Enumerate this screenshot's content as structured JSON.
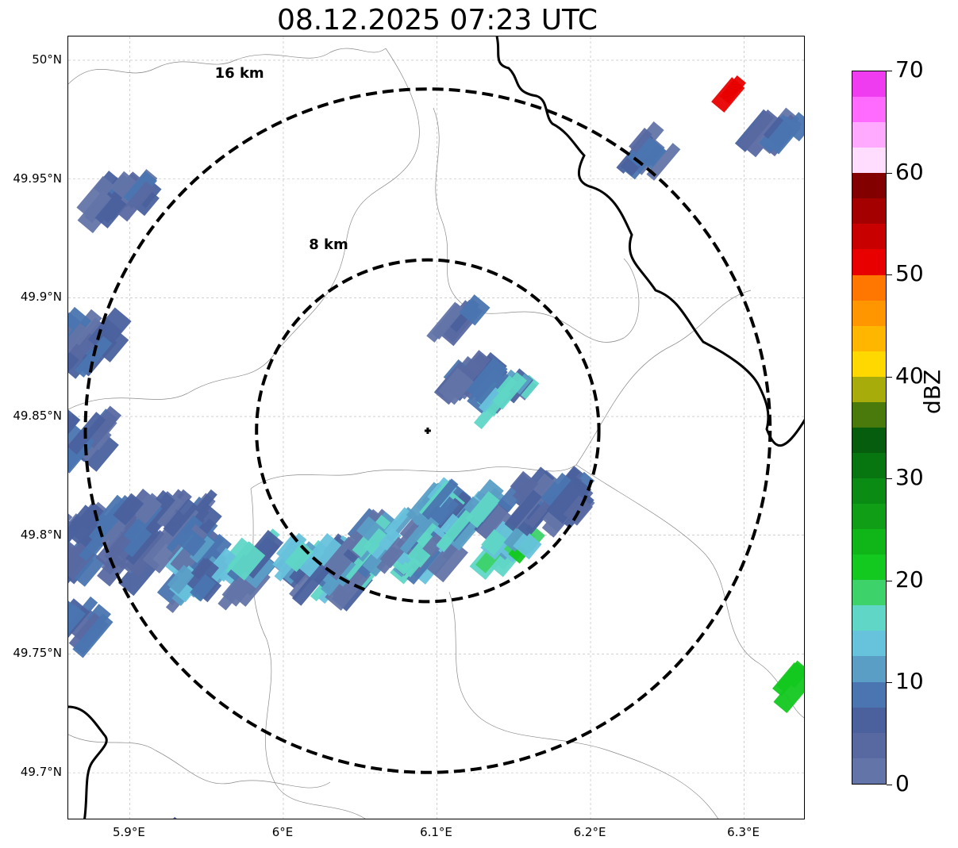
{
  "title": "08.12.2025 07:23 UTC",
  "map": {
    "lon_range": [
      5.86,
      6.34
    ],
    "lat_range": [
      49.68,
      50.01
    ],
    "lat_ticks": [
      {
        "value": 50.0,
        "label": "50°N"
      },
      {
        "value": 49.95,
        "label": "49.95°N"
      },
      {
        "value": 49.9,
        "label": "49.9°N"
      },
      {
        "value": 49.85,
        "label": "49.85°N"
      },
      {
        "value": 49.8,
        "label": "49.8°N"
      },
      {
        "value": 49.75,
        "label": "49.75°N"
      },
      {
        "value": 49.7,
        "label": "49.7°N"
      }
    ],
    "lon_ticks": [
      {
        "value": 5.9,
        "label": "5.9°E"
      },
      {
        "value": 6.0,
        "label": "6°E"
      },
      {
        "value": 6.1,
        "label": "6.1°E"
      },
      {
        "value": 6.2,
        "label": "6.2°E"
      },
      {
        "value": 6.3,
        "label": "6.3°E"
      }
    ],
    "radar_site": {
      "lon": 6.094,
      "lat": 49.844
    },
    "range_rings": [
      {
        "radius_km": 8,
        "label": "8 km"
      },
      {
        "radius_km": 16,
        "label": "16 km"
      }
    ],
    "gridlines": true
  },
  "colorbar": {
    "unit": "dBZ",
    "min": 0,
    "max": 70,
    "tick_labels": [
      "0",
      "10",
      "20",
      "30",
      "40",
      "50",
      "60",
      "70"
    ],
    "colors": [
      "#6274a8",
      "#5869a2",
      "#4a619e",
      "#4a75b0",
      "#5a9ec6",
      "#67c2dc",
      "#5fd6c6",
      "#3dd36a",
      "#13c81f",
      "#10b617",
      "#0f9e16",
      "#0a8b14",
      "#077510",
      "#055d0d",
      "#4a7a0c",
      "#a8ac0a",
      "#ffd800",
      "#ffb600",
      "#ff9600",
      "#ff7600",
      "#e80000",
      "#c80000",
      "#a40000",
      "#820000",
      "#ffddff",
      "#ffaaff",
      "#ff6bff",
      "#f03cf0"
    ]
  }
}
